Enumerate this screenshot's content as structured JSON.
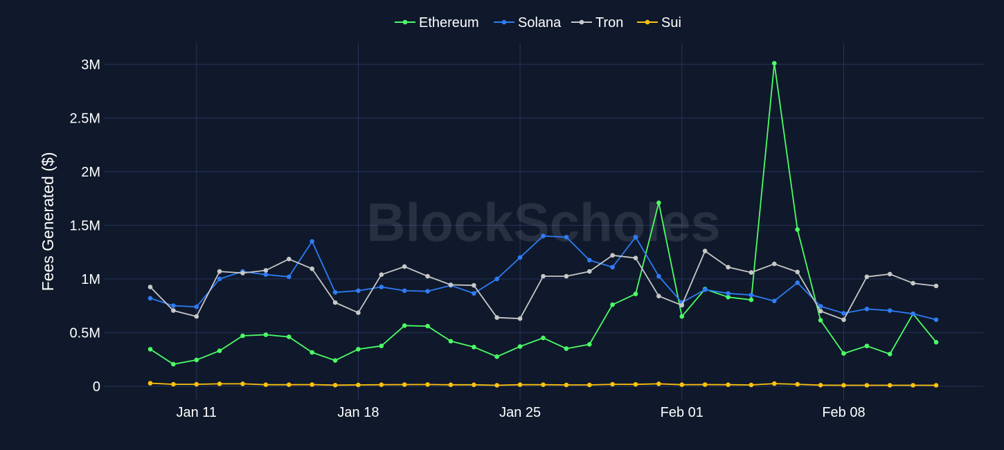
{
  "watermark": "BlockScholes",
  "colors": {
    "background": "#0f192b",
    "grid": "#26355a",
    "text": "#ffffff"
  },
  "chart_data": {
    "type": "line",
    "xlabel": "",
    "ylabel": "Fees Generated ($)",
    "x": [
      "2025-01-09",
      "2025-01-10",
      "2025-01-11",
      "2025-01-12",
      "2025-01-13",
      "2025-01-14",
      "2025-01-15",
      "2025-01-16",
      "2025-01-17",
      "2025-01-18",
      "2025-01-19",
      "2025-01-20",
      "2025-01-21",
      "2025-01-22",
      "2025-01-23",
      "2025-01-24",
      "2025-01-25",
      "2025-01-26",
      "2025-01-27",
      "2025-01-28",
      "2025-01-29",
      "2025-01-30",
      "2025-01-31",
      "2025-02-01",
      "2025-02-02",
      "2025-02-03",
      "2025-02-04",
      "2025-02-05",
      "2025-02-06",
      "2025-02-07",
      "2025-02-08",
      "2025-02-09",
      "2025-02-10",
      "2025-02-11",
      "2025-02-12"
    ],
    "x_ticks": [
      "Jan 11",
      "Jan 18",
      "Jan 25",
      "Feb 01",
      "Feb 08"
    ],
    "x_tick_dates": [
      "2025-01-11",
      "2025-01-18",
      "2025-01-25",
      "2025-02-01",
      "2025-02-08"
    ],
    "y_ticks": [
      0,
      500000,
      1000000,
      1500000,
      2000000,
      2500000,
      3000000
    ],
    "y_tick_labels": [
      "0",
      "0.5M",
      "1M",
      "1.5M",
      "2M",
      "2.5M",
      "3M"
    ],
    "ylim": [
      -130000,
      3200000
    ],
    "grid": true,
    "legend_position": "top-center",
    "series": [
      {
        "name": "Ethereum",
        "color": "#4cff66",
        "values": [
          345000,
          205000,
          245000,
          330000,
          470000,
          480000,
          460000,
          315000,
          240000,
          345000,
          375000,
          565000,
          560000,
          420000,
          365000,
          275000,
          370000,
          450000,
          350000,
          390000,
          760000,
          860000,
          1710000,
          650000,
          905000,
          830000,
          805000,
          3010000,
          1460000,
          615000,
          305000,
          375000,
          300000,
          675000,
          410000
        ]
      },
      {
        "name": "Solana",
        "color": "#2f7cf6",
        "values": [
          820000,
          750000,
          740000,
          1000000,
          1070000,
          1040000,
          1020000,
          1350000,
          875000,
          890000,
          925000,
          890000,
          885000,
          940000,
          865000,
          1000000,
          1200000,
          1400000,
          1390000,
          1175000,
          1110000,
          1390000,
          1025000,
          780000,
          900000,
          865000,
          850000,
          795000,
          965000,
          745000,
          680000,
          720000,
          705000,
          675000,
          620000
        ]
      },
      {
        "name": "Tron",
        "color": "#c8c8c8",
        "values": [
          925000,
          705000,
          650000,
          1070000,
          1055000,
          1080000,
          1185000,
          1095000,
          780000,
          685000,
          1040000,
          1115000,
          1025000,
          945000,
          940000,
          640000,
          630000,
          1025000,
          1025000,
          1070000,
          1220000,
          1195000,
          840000,
          755000,
          1260000,
          1110000,
          1060000,
          1140000,
          1065000,
          700000,
          620000,
          1020000,
          1045000,
          960000,
          935000
        ]
      },
      {
        "name": "Sui",
        "color": "#ffc20e",
        "values": [
          28000,
          18000,
          18000,
          22000,
          22000,
          14000,
          14000,
          15000,
          10000,
          12000,
          14000,
          15000,
          16000,
          13000,
          13000,
          9000,
          14000,
          14000,
          12000,
          12000,
          18000,
          17000,
          22000,
          14000,
          15000,
          14000,
          12000,
          24000,
          18000,
          10000,
          9000,
          9000,
          9000,
          9000,
          9000
        ]
      }
    ]
  }
}
